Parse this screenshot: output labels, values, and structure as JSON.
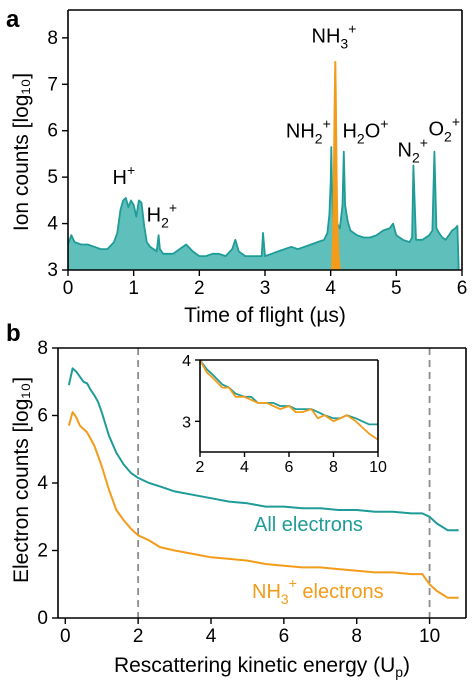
{
  "colors": {
    "teal": "#1f9c97",
    "teal_fill": "#5fbfbb",
    "orange": "#f39c1b"
  },
  "chart_data": [
    {
      "panel": "a",
      "type": "area",
      "xlabel": "Time of flight (µs)",
      "ylabel": "Ion counts [log₁₀]",
      "xlim": [
        0,
        6
      ],
      "ylim": [
        3,
        8.6
      ],
      "xticks": [
        "0",
        "1",
        "2",
        "3",
        "4",
        "5",
        "6"
      ],
      "yticks": [
        "3",
        "4",
        "5",
        "6",
        "7",
        "8"
      ],
      "grid": false,
      "series": [
        {
          "color": "teal",
          "x": [
            0,
            0.05,
            0.1,
            0.2,
            0.3,
            0.4,
            0.5,
            0.6,
            0.7,
            0.75,
            0.8,
            0.84,
            0.88,
            0.92,
            0.96,
            1.0,
            1.04,
            1.08,
            1.12,
            1.16,
            1.2,
            1.25,
            1.3,
            1.35,
            1.38,
            1.4,
            1.45,
            1.5,
            1.6,
            1.7,
            1.8,
            1.9,
            2.0,
            2.1,
            2.2,
            2.3,
            2.4,
            2.5,
            2.55,
            2.6,
            2.7,
            2.8,
            2.9,
            2.95,
            2.97,
            3.0,
            3.1,
            3.2,
            3.3,
            3.4,
            3.5,
            3.6,
            3.7,
            3.8,
            3.9,
            3.95,
            3.98,
            4.0,
            4.01,
            4.02,
            4.04,
            4.06,
            4.1,
            4.14,
            4.18,
            4.2,
            4.22,
            4.26,
            4.3,
            4.4,
            4.5,
            4.6,
            4.7,
            4.8,
            4.9,
            4.95,
            5.0,
            5.1,
            5.2,
            5.24,
            5.26,
            5.3,
            5.4,
            5.5,
            5.55,
            5.58,
            5.61,
            5.65,
            5.7,
            5.75,
            5.8,
            5.85,
            5.9,
            5.93,
            5.95
          ],
          "y": [
            3.55,
            3.75,
            3.6,
            3.55,
            3.55,
            3.5,
            3.45,
            3.45,
            3.6,
            3.8,
            4.3,
            4.5,
            4.55,
            4.35,
            4.5,
            4.4,
            4.15,
            4.5,
            4.45,
            3.95,
            3.6,
            3.5,
            3.45,
            3.4,
            3.75,
            3.45,
            3.35,
            3.35,
            3.35,
            3.45,
            3.55,
            3.4,
            3.3,
            3.3,
            3.35,
            3.35,
            3.3,
            3.45,
            3.65,
            3.4,
            3.3,
            3.3,
            3.3,
            3.3,
            3.8,
            3.3,
            3.35,
            3.4,
            3.45,
            3.5,
            3.45,
            3.5,
            3.55,
            3.6,
            3.65,
            3.8,
            4.2,
            4.9,
            5.65,
            4.8,
            4.1,
            3.9,
            4.0,
            3.9,
            4.4,
            5.55,
            4.4,
            4.05,
            3.85,
            3.75,
            3.7,
            3.7,
            3.75,
            3.85,
            3.9,
            4.0,
            3.75,
            3.65,
            3.6,
            3.7,
            5.25,
            3.65,
            3.65,
            3.75,
            3.85,
            5.55,
            3.9,
            3.8,
            3.7,
            3.65,
            3.75,
            3.85,
            3.9,
            3.95,
            3.0
          ]
        },
        {
          "color": "orange",
          "x": [
            4.02,
            4.04,
            4.06,
            4.07,
            4.08,
            4.09,
            4.1,
            4.12,
            4.14
          ],
          "y": [
            3.0,
            3.8,
            6.4,
            7.5,
            6.5,
            5.0,
            4.1,
            3.3,
            3.0
          ]
        }
      ],
      "annotations": [
        {
          "text": "H",
          "sup": "+",
          "x": 0.85,
          "y": 4.85
        },
        {
          "text": "H",
          "sub": "2",
          "sup": "+",
          "x": 1.43,
          "y": 4.05
        },
        {
          "text": "NH",
          "sub": "3",
          "sup": "+",
          "x": 4.05,
          "y": 7.9
        },
        {
          "text": "NH",
          "sub": "2",
          "sup": "+",
          "x": 3.66,
          "y": 5.85
        },
        {
          "text": "H",
          "sub": "2",
          "text2": "O",
          "sup": "+",
          "x": 4.53,
          "y": 5.85
        },
        {
          "text": "N",
          "sub": "2",
          "sup": "+",
          "x": 5.25,
          "y": 5.45
        },
        {
          "text": "O",
          "sub": "2",
          "sup": "+",
          "x": 5.73,
          "y": 5.9
        }
      ],
      "letter": "a"
    },
    {
      "panel": "b",
      "type": "line",
      "xlabel": "Rescattering kinetic energy (U",
      "xlabel_sub": "p",
      "xlabel_end": ")",
      "ylabel": "Electron counts [log₁₀]",
      "xlim": [
        -0.2,
        11
      ],
      "ylim": [
        0,
        8
      ],
      "xticks": [
        "0",
        "2",
        "4",
        "6",
        "8",
        "10"
      ],
      "yticks": [
        "0",
        "2",
        "4",
        "6",
        "8"
      ],
      "grid": false,
      "vlines": [
        2,
        10
      ],
      "series": [
        {
          "name": "All electrons",
          "color": "teal",
          "x": [
            0.1,
            0.2,
            0.3,
            0.4,
            0.5,
            0.6,
            0.7,
            0.8,
            0.9,
            1.0,
            1.2,
            1.4,
            1.6,
            1.8,
            2.0,
            2.3,
            2.6,
            3.0,
            3.5,
            4.0,
            4.5,
            5.0,
            5.5,
            6.0,
            6.5,
            7.0,
            7.5,
            8.0,
            8.5,
            9.0,
            9.5,
            9.8,
            10.0,
            10.2,
            10.5,
            10.8
          ],
          "y": [
            6.9,
            7.4,
            7.3,
            7.15,
            7.0,
            6.95,
            6.75,
            6.6,
            6.4,
            6.1,
            5.4,
            4.9,
            4.55,
            4.3,
            4.15,
            4.0,
            3.9,
            3.75,
            3.65,
            3.55,
            3.45,
            3.4,
            3.3,
            3.3,
            3.25,
            3.25,
            3.2,
            3.2,
            3.15,
            3.15,
            3.1,
            3.1,
            3.0,
            2.8,
            2.6,
            2.6
          ]
        },
        {
          "name": "NH₃⁺ electrons",
          "color": "orange",
          "x": [
            0.1,
            0.2,
            0.3,
            0.4,
            0.5,
            0.6,
            0.7,
            0.8,
            0.9,
            1.0,
            1.2,
            1.4,
            1.6,
            1.8,
            2.0,
            2.3,
            2.6,
            3.0,
            3.5,
            4.0,
            4.5,
            5.0,
            5.5,
            6.0,
            6.5,
            7.0,
            7.5,
            8.0,
            8.5,
            9.0,
            9.5,
            9.8,
            10.0,
            10.2,
            10.5,
            10.8
          ],
          "y": [
            5.7,
            6.1,
            5.95,
            5.7,
            5.6,
            5.5,
            5.3,
            5.1,
            4.8,
            4.5,
            3.8,
            3.2,
            2.9,
            2.65,
            2.45,
            2.3,
            2.1,
            2.0,
            1.9,
            1.8,
            1.75,
            1.7,
            1.6,
            1.55,
            1.5,
            1.5,
            1.45,
            1.4,
            1.35,
            1.35,
            1.3,
            1.3,
            1.0,
            0.8,
            0.6,
            0.6
          ]
        }
      ],
      "series_labels": {
        "all_text": "All electrons",
        "nh3_text": "NH",
        "nh3_sub": "3",
        "nh3_sup": "+",
        "nh3_end": " electrons"
      },
      "letter": "b",
      "inset": {
        "xlim": [
          2,
          10
        ],
        "ylim": [
          2.5,
          4
        ],
        "xticks": [
          "2",
          "4",
          "6",
          "8",
          "10"
        ],
        "yticks": [
          "3",
          "4"
        ],
        "series": [
          {
            "color": "teal",
            "x": [
              2.0,
              2.3,
              2.6,
              3.0,
              3.3,
              3.6,
              4.0,
              4.3,
              4.6,
              5.0,
              5.3,
              5.6,
              6.0,
              6.3,
              6.6,
              7.0,
              7.3,
              7.6,
              8.0,
              8.3,
              8.6,
              9.0,
              9.3,
              9.6,
              10.0
            ],
            "y": [
              4.0,
              3.85,
              3.75,
              3.6,
              3.55,
              3.45,
              3.4,
              3.4,
              3.3,
              3.3,
              3.3,
              3.25,
              3.25,
              3.2,
              3.2,
              3.2,
              3.15,
              3.1,
              3.05,
              3.05,
              3.1,
              3.05,
              3.0,
              2.95,
              2.95
            ]
          },
          {
            "color": "orange",
            "x": [
              2.0,
              2.3,
              2.6,
              3.0,
              3.3,
              3.6,
              4.0,
              4.3,
              4.6,
              5.0,
              5.3,
              5.6,
              6.0,
              6.3,
              6.6,
              7.0,
              7.3,
              7.6,
              8.0,
              8.3,
              8.6,
              9.0,
              9.3,
              9.6,
              10.0
            ],
            "y": [
              4.0,
              3.8,
              3.7,
              3.55,
              3.55,
              3.4,
              3.4,
              3.35,
              3.3,
              3.3,
              3.25,
              3.2,
              3.25,
              3.15,
              3.15,
              3.2,
              3.05,
              3.1,
              3.0,
              3.05,
              3.1,
              3.0,
              2.9,
              2.8,
              2.7
            ]
          }
        ]
      }
    }
  ]
}
